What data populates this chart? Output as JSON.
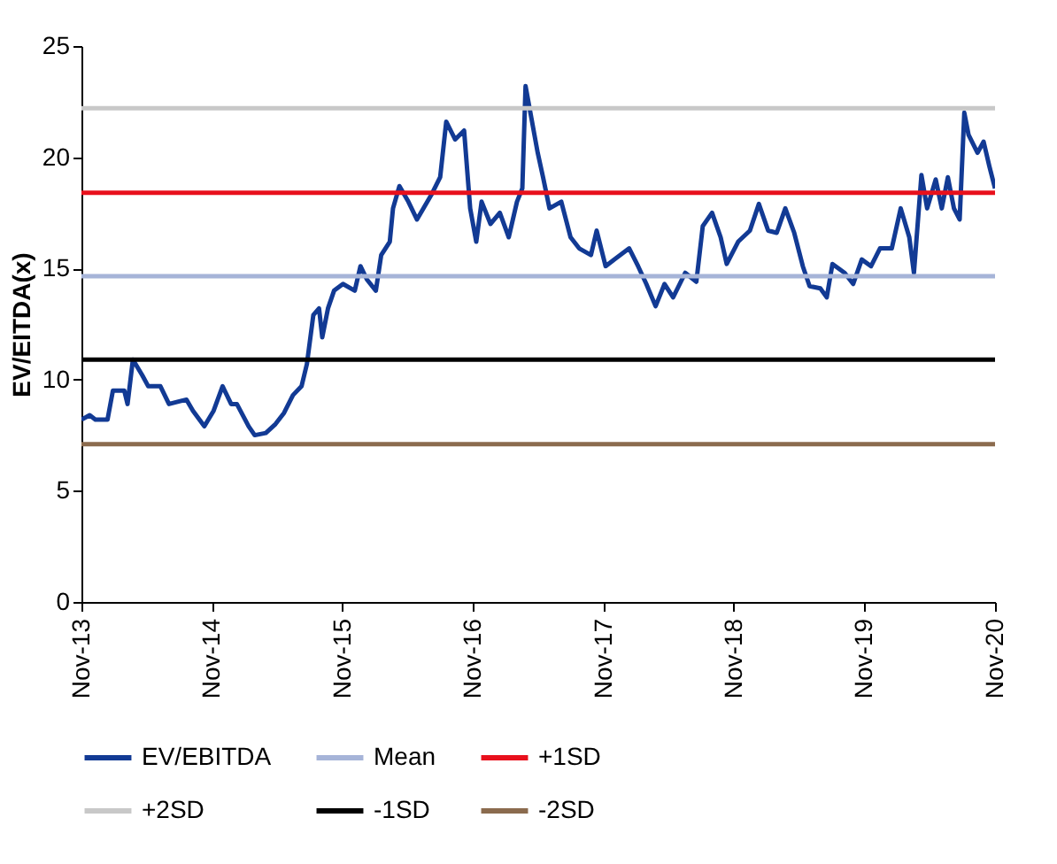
{
  "chart_data": {
    "type": "line",
    "ylabel": "EV/EITDA(x)",
    "x": [
      "2013-11-01",
      "2013-11-24",
      "2013-12-10",
      "2014-01-13",
      "2014-01-28",
      "2014-03-01",
      "2014-03-10",
      "2014-03-25",
      "2014-04-20",
      "2014-05-07",
      "2014-06-10",
      "2014-07-04",
      "2014-07-28",
      "2014-08-22",
      "2014-09-09",
      "2014-10-11",
      "2014-11-06",
      "2014-12-01",
      "2014-12-25",
      "2015-01-10",
      "2015-02-12",
      "2015-03-01",
      "2015-04-01",
      "2015-04-28",
      "2015-05-22",
      "2015-06-16",
      "2015-07-10",
      "2015-07-25",
      "2015-08-12",
      "2015-08-28",
      "2015-09-06",
      "2015-09-22",
      "2015-10-09",
      "2015-11-03",
      "2015-12-06",
      "2015-12-22",
      "2016-01-09",
      "2016-02-03",
      "2016-02-18",
      "2016-03-13",
      "2016-03-22",
      "2016-04-09",
      "2016-05-04",
      "2016-05-28",
      "2016-07-07",
      "2016-08-01",
      "2016-08-18",
      "2016-09-12",
      "2016-10-07",
      "2016-10-24",
      "2016-11-10",
      "2016-11-25",
      "2016-12-20",
      "2017-01-15",
      "2017-02-09",
      "2017-03-04",
      "2017-03-19",
      "2017-03-28",
      "2017-04-14",
      "2017-05-01",
      "2017-05-16",
      "2017-06-03",
      "2017-07-06",
      "2017-08-01",
      "2017-08-25",
      "2017-09-27",
      "2017-10-13",
      "2017-11-07",
      "2017-12-01",
      "2018-01-12",
      "2018-02-06",
      "2018-03-01",
      "2018-03-27",
      "2018-04-21",
      "2018-05-15",
      "2018-06-18",
      "2018-07-19",
      "2018-08-06",
      "2018-09-01",
      "2018-09-25",
      "2018-10-12",
      "2018-11-13",
      "2018-12-16",
      "2019-01-10",
      "2019-02-05",
      "2019-03-01",
      "2019-03-25",
      "2019-04-19",
      "2019-05-13",
      "2019-06-01",
      "2019-07-01",
      "2019-07-19",
      "2019-08-04",
      "2019-09-07",
      "2019-10-01",
      "2019-10-25",
      "2019-11-20",
      "2019-12-15",
      "2020-01-17",
      "2020-02-11",
      "2020-03-06",
      "2020-03-19",
      "2020-04-09",
      "2020-04-25",
      "2020-05-19",
      "2020-06-05",
      "2020-06-22",
      "2020-07-09",
      "2020-07-25",
      "2020-08-07",
      "2020-08-19",
      "2020-09-13",
      "2020-09-30",
      "2020-10-16",
      "2020-11-01"
    ],
    "series": [
      {
        "name": "EV/EBITDA",
        "color": "#123a94",
        "values": [
          8.2,
          8.4,
          8.2,
          8.2,
          9.5,
          9.5,
          8.9,
          10.9,
          10.2,
          9.7,
          9.7,
          8.9,
          9.0,
          9.1,
          8.6,
          7.9,
          8.6,
          9.7,
          8.9,
          8.9,
          7.9,
          7.5,
          7.6,
          8.0,
          8.5,
          9.3,
          9.7,
          10.7,
          12.9,
          13.2,
          11.9,
          13.2,
          14.0,
          14.3,
          14.0,
          15.1,
          14.5,
          14.0,
          15.6,
          16.2,
          17.7,
          18.7,
          18.0,
          17.2,
          18.3,
          19.1,
          21.6,
          20.8,
          21.2,
          17.7,
          16.2,
          18.0,
          17.0,
          17.5,
          16.4,
          18.0,
          18.6,
          23.2,
          21.7,
          20.2,
          19.1,
          17.7,
          18.0,
          16.4,
          15.9,
          15.6,
          16.7,
          15.1,
          15.4,
          15.9,
          15.1,
          14.3,
          13.3,
          14.3,
          13.7,
          14.8,
          14.4,
          16.9,
          17.5,
          16.4,
          15.2,
          16.2,
          16.7,
          17.9,
          16.7,
          16.6,
          17.7,
          16.6,
          15.1,
          14.2,
          14.1,
          13.7,
          15.2,
          14.8,
          14.3,
          15.4,
          15.1,
          15.9,
          15.9,
          17.7,
          16.4,
          14.8,
          19.2,
          17.7,
          19.0,
          17.7,
          19.1,
          17.7,
          17.2,
          22.0,
          21.0,
          20.2,
          20.7,
          19.6,
          18.6
        ]
      },
      {
        "name": "Mean",
        "color": "#a6b4d8",
        "x": [
          "2013-11-01",
          "2020-11-01"
        ],
        "values": [
          14.65,
          14.65
        ]
      },
      {
        "name": "+1SD",
        "color": "#e8101c",
        "x": [
          "2013-11-01",
          "2020-11-01"
        ],
        "values": [
          18.4,
          18.4
        ]
      },
      {
        "name": "+2SD",
        "color": "#c8c8c8",
        "x": [
          "2013-11-01",
          "2020-11-01"
        ],
        "values": [
          22.2,
          22.2
        ]
      },
      {
        "name": "-1SD",
        "color": "#000000",
        "x": [
          "2013-11-01",
          "2020-11-01"
        ],
        "values": [
          10.9,
          10.9
        ]
      },
      {
        "name": "-2SD",
        "color": "#8b6b4e",
        "x": [
          "2013-11-01",
          "2020-11-01"
        ],
        "values": [
          7.1,
          7.1
        ]
      }
    ],
    "xlim": [
      "2013-11-01",
      "2020-11-01"
    ],
    "xticks": [
      {
        "value": "2013-11-01",
        "label": "Nov-13"
      },
      {
        "value": "2014-11-01",
        "label": "Nov-14"
      },
      {
        "value": "2015-11-01",
        "label": "Nov-15"
      },
      {
        "value": "2016-11-01",
        "label": "Nov-16"
      },
      {
        "value": "2017-11-01",
        "label": "Nov-17"
      },
      {
        "value": "2018-11-01",
        "label": "Nov-18"
      },
      {
        "value": "2019-11-01",
        "label": "Nov-19"
      },
      {
        "value": "2020-11-01",
        "label": "Nov-20"
      }
    ],
    "ylim": [
      0,
      25
    ],
    "yticks": [
      0,
      5,
      10,
      15,
      20,
      25
    ],
    "legend": "bottom"
  }
}
